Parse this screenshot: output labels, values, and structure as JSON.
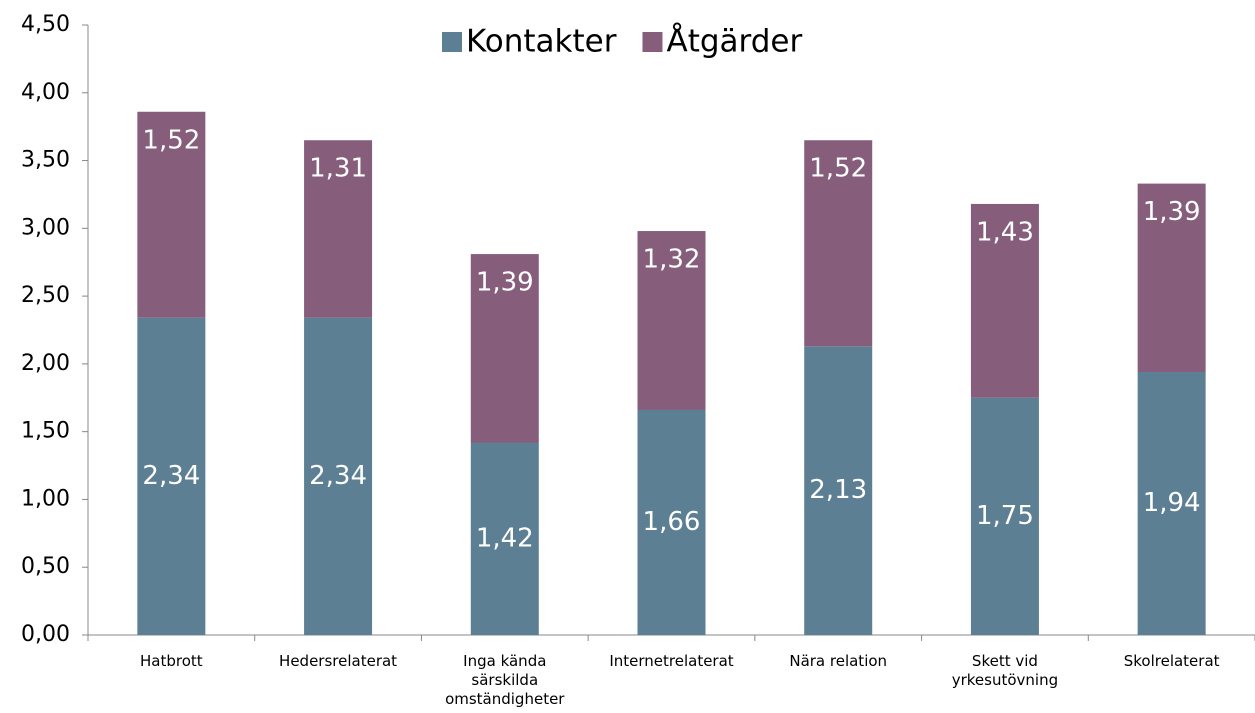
{
  "chart_data": {
    "type": "stacked_bar",
    "categories": [
      "Hatbrott",
      "Hedersrelaterat",
      "Inga kända särskilda omständigheter",
      "Internetrelaterat",
      "Nära relation",
      "Skett vid yrkesutövning",
      "Skolrelaterat"
    ],
    "series": [
      {
        "name": "Kontakter",
        "color": "#5d7f94",
        "values": [
          2.34,
          2.34,
          1.42,
          1.66,
          2.13,
          1.75,
          1.94
        ],
        "value_labels": [
          "2,34",
          "2,34",
          "1,42",
          "1,66",
          "2,13",
          "1,75",
          "1,94"
        ]
      },
      {
        "name": "Åtgärder",
        "color": "#865e7c",
        "values": [
          1.52,
          1.31,
          1.39,
          1.32,
          1.52,
          1.43,
          1.39
        ],
        "value_labels": [
          "1,52",
          "1,31",
          "1,39",
          "1,32",
          "1,52",
          "1,43",
          "1,39"
        ]
      }
    ],
    "ylim": [
      0,
      4.5
    ],
    "yticks": [
      {
        "value": 0,
        "label": "0,00"
      },
      {
        "value": 0.5,
        "label": "0,50"
      },
      {
        "value": 1,
        "label": "1,00"
      },
      {
        "value": 1.5,
        "label": "1,50"
      },
      {
        "value": 2,
        "label": "2,00"
      },
      {
        "value": 2.5,
        "label": "2,50"
      },
      {
        "value": 3,
        "label": "3,00"
      },
      {
        "value": 3.5,
        "label": "3,50"
      },
      {
        "value": 4,
        "label": "4,00"
      },
      {
        "value": 4.5,
        "label": "4,50"
      }
    ],
    "legend": "top"
  }
}
